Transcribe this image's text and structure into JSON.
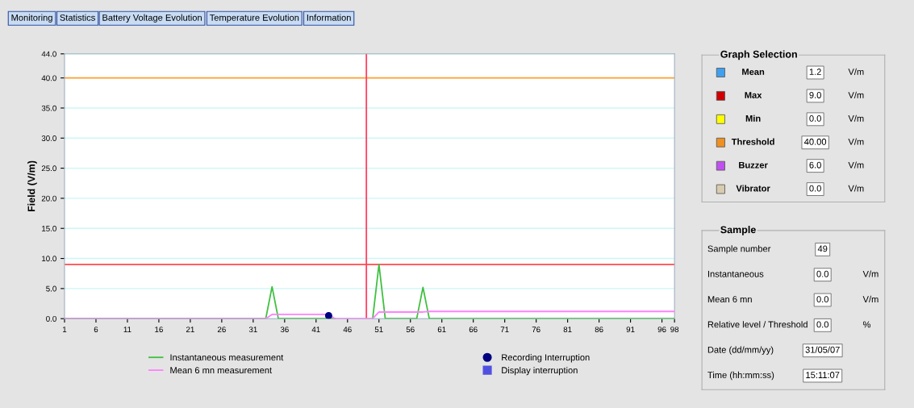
{
  "chart_data": [
    {
      "type": "line",
      "ylabel": "Field (V/m)",
      "annotations": [
        "Monitoring",
        "Statistics",
        "Battery Voltage Evolution",
        "Temperature Evolution",
        "Information"
      ],
      "xlim": [
        1,
        98
      ],
      "xticks": [
        1,
        6,
        11,
        16,
        21,
        26,
        31,
        36,
        41,
        46,
        51,
        56,
        61,
        66,
        71,
        76,
        81,
        86,
        91,
        96,
        98
      ],
      "ylim": [
        0,
        44
      ],
      "yticks": [
        {
          "value": 0,
          "label": "0.0"
        },
        {
          "value": 5,
          "label": "5.0"
        },
        {
          "value": 10,
          "label": "10.0"
        },
        {
          "value": 15,
          "label": "15.0"
        },
        {
          "value": 20,
          "label": "20.0"
        },
        {
          "value": 25,
          "label": "25.0"
        },
        {
          "value": 30,
          "label": "30.0"
        },
        {
          "value": 35,
          "label": "35.0"
        },
        {
          "value": 40,
          "label": "40.0"
        },
        {
          "value": 44,
          "label": "44.0"
        }
      ],
      "grid": "y",
      "legend": "bottom",
      "marker": "none",
      "line_style": "solid",
      "ref_lines": [
        {
          "axis": "y",
          "value": 40,
          "color": "#ffa030"
        },
        {
          "axis": "y",
          "value": 9,
          "color": "#ff6060"
        },
        {
          "axis": "x",
          "value": 49,
          "color": "#ff4060"
        }
      ],
      "series": [
        {
          "name": "Instantaneous measurement",
          "color": "#40c040",
          "x": [
            1,
            33,
            34,
            35,
            44,
            45,
            50,
            51,
            52,
            57,
            58,
            59,
            98
          ],
          "values": [
            0,
            0,
            5.3,
            0,
            0,
            null,
            0,
            9,
            0,
            0,
            5.2,
            0,
            0
          ]
        },
        {
          "name": "Mean 6 mn measurement",
          "color": "#ff80ff",
          "x": [
            1,
            33,
            34,
            43,
            44,
            50,
            51,
            58,
            59,
            98
          ],
          "values": [
            0,
            0,
            0.7,
            0.7,
            0,
            0,
            1.1,
            1.1,
            1.2,
            1.2
          ]
        },
        {
          "name": "Recording Interruption",
          "type": "scatter",
          "color": "#000080",
          "x": [
            43
          ],
          "values": [
            0.5
          ]
        },
        {
          "name": "Display interruption",
          "type": "scatter",
          "color": "#5050e0",
          "marker": "square"
        }
      ]
    },
    {
      "type": "other",
      "title": "Graph Selection",
      "colors": [
        "#40a0f0",
        "#d00000",
        "#ffff00",
        "#f09020",
        "#c050f0",
        "#d8ccb0"
      ],
      "annotations": [
        "Mean",
        "1.2",
        "V/m",
        "Max",
        "9.0",
        "V/m",
        "Min",
        "0.0",
        "V/m",
        "Threshold",
        "40.00",
        "V/m",
        "Buzzer",
        "6.0",
        "V/m",
        "Vibrator",
        "0.0",
        "V/m"
      ]
    },
    {
      "type": "other",
      "title": "Sample",
      "annotations": [
        "Sample number",
        "49",
        null,
        "Instantaneous",
        "0.0",
        "V/m",
        "Mean 6 mn",
        "0.0",
        "V/m",
        "Relative level / Threshold",
        "0.0",
        "%",
        "Date (dd/mm/yy)",
        "31/05/07",
        null,
        "Time (hh:mm:ss)",
        "15:11:07",
        null
      ]
    }
  ]
}
